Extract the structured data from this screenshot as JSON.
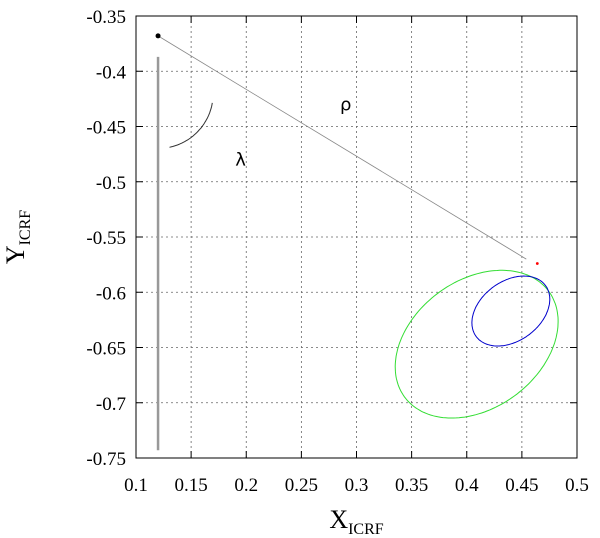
{
  "chart_data": {
    "type": "line",
    "xlabel": "X",
    "xlabel_sub": "ICRF",
    "ylabel": "Y",
    "ylabel_sub": "ICRF",
    "xlim": [
      0.1,
      0.5
    ],
    "ylim": [
      -0.75,
      -0.35
    ],
    "xticks": [
      "0.1",
      "0.15",
      "0.2",
      "0.25",
      "0.3",
      "0.35",
      "0.4",
      "0.45",
      "0.5"
    ],
    "yticks": [
      "-0.35",
      "-0.4",
      "-0.45",
      "-0.5",
      "-0.55",
      "-0.6",
      "-0.65",
      "-0.7",
      "-0.75"
    ],
    "grid": true,
    "series": [
      {
        "x": [
          0.12,
          0.12
        ],
        "y": [
          -0.387,
          -0.743
        ],
        "color": "#999999"
      },
      {
        "x": [
          0.12,
          0.454
        ],
        "y": [
          -0.368,
          -0.57
        ],
        "color": "#888888"
      },
      {
        "center": [
          0.409,
          -0.647
        ],
        "semi_axes": [
          0.081,
          0.058
        ],
        "angle_deg": 36,
        "color": "#33dd33"
      },
      {
        "center": [
          0.44,
          -0.617
        ],
        "semi_axes": [
          0.039,
          0.027
        ],
        "angle_deg": 36,
        "color": "#0000cc"
      },
      {
        "center": [
          0.12,
          -0.42
        ],
        "radius": 0.05,
        "from_deg": 12,
        "to_deg": 80,
        "color": "#333333"
      }
    ],
    "points": [
      {
        "x": 0.12,
        "y": -0.368,
        "color": "#000000"
      },
      {
        "x": 0.464,
        "y": -0.574,
        "color": "#ff0000"
      }
    ],
    "annotations": [
      {
        "text": "ρ",
        "x": 0.285,
        "y": -0.43
      },
      {
        "text": "λ",
        "x": 0.19,
        "y": -0.48
      }
    ]
  }
}
